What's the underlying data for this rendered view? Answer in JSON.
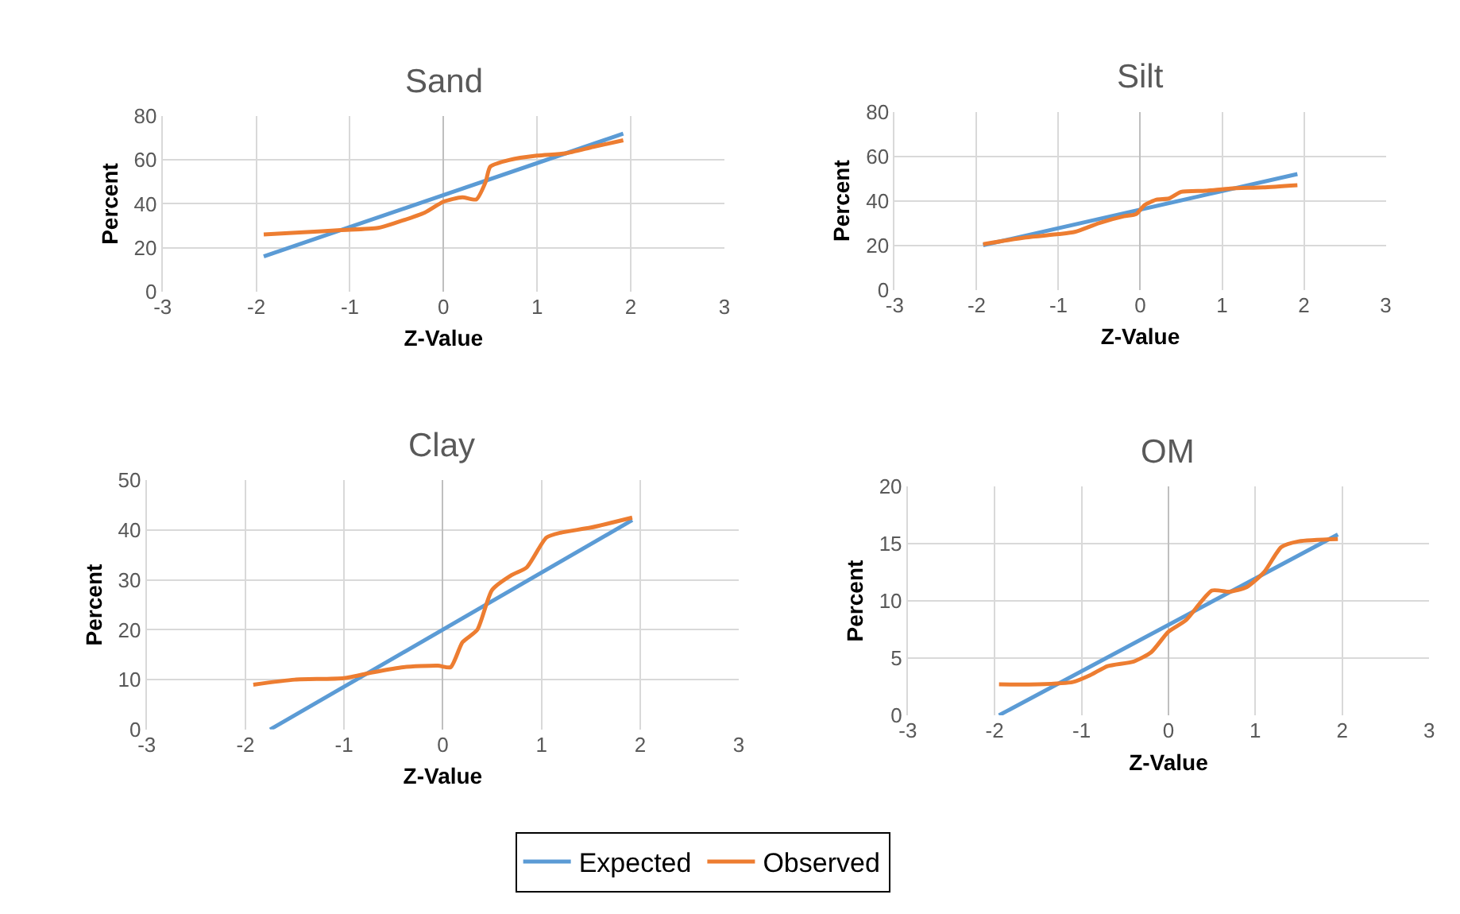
{
  "chart_data": [
    {
      "type": "line",
      "title": "Sand",
      "xlabel": "Z-Value",
      "ylabel": "Percent",
      "xlim": [
        -3,
        3
      ],
      "xticks": [
        -3,
        -2,
        -1,
        0,
        1,
        2,
        3
      ],
      "ylim": [
        0,
        80
      ],
      "yticks": [
        0,
        20,
        40,
        60,
        80
      ],
      "grid": true,
      "legend": "bottom",
      "series": [
        {
          "name": "Expected",
          "color": "#5b9bd5",
          "x": [
            -1.92,
            1.92
          ],
          "values": [
            16,
            72
          ]
        },
        {
          "name": "Observed",
          "color": "#ed7d31",
          "x": [
            -1.92,
            -1.5,
            -1.1,
            -0.7,
            -0.5,
            -0.2,
            0,
            0.2,
            0.35,
            0.45,
            0.5,
            0.7,
            1,
            1.3,
            1.6,
            1.92
          ],
          "values": [
            26,
            27,
            28,
            29,
            31.5,
            36,
            41,
            43,
            42,
            50,
            57,
            60,
            62,
            63,
            66,
            69
          ]
        }
      ]
    },
    {
      "type": "line",
      "title": "Silt",
      "xlabel": "Z-Value",
      "ylabel": "Percent",
      "xlim": [
        -3,
        3
      ],
      "xticks": [
        -3,
        -2,
        -1,
        0,
        1,
        2,
        3
      ],
      "ylim": [
        0,
        80
      ],
      "yticks": [
        0,
        20,
        40,
        60,
        80
      ],
      "grid": true,
      "series": [
        {
          "name": "Expected",
          "color": "#5b9bd5",
          "x": [
            -1.92,
            1.92
          ],
          "values": [
            20,
            52
          ]
        },
        {
          "name": "Observed",
          "color": "#ed7d31",
          "x": [
            -1.92,
            -1.4,
            -1,
            -0.8,
            -0.5,
            -0.2,
            -0.05,
            0.05,
            0.2,
            0.35,
            0.5,
            0.8,
            1.1,
            1.5,
            1.92
          ],
          "values": [
            20.5,
            23.5,
            25,
            26,
            30,
            33,
            34,
            38,
            40.5,
            41,
            44,
            44.5,
            45.5,
            46,
            47
          ]
        }
      ]
    },
    {
      "type": "line",
      "title": "Clay",
      "xlabel": "Z-Value",
      "ylabel": "Percent",
      "xlim": [
        -3,
        3
      ],
      "xticks": [
        -3,
        -2,
        -1,
        0,
        1,
        2,
        3
      ],
      "ylim": [
        0,
        50
      ],
      "yticks": [
        0,
        10,
        20,
        30,
        40,
        50
      ],
      "grid": true,
      "series": [
        {
          "name": "Expected",
          "color": "#5b9bd5",
          "x": [
            -1.75,
            1.92
          ],
          "values": [
            0,
            42
          ]
        },
        {
          "name": "Observed",
          "color": "#ed7d31",
          "x": [
            -1.92,
            -1.5,
            -1,
            -0.7,
            -0.4,
            -0.05,
            0.08,
            0.2,
            0.35,
            0.5,
            0.7,
            0.85,
            1.05,
            1.2,
            1.5,
            1.92
          ],
          "values": [
            9,
            10,
            10.3,
            11.5,
            12.5,
            12.8,
            12.5,
            17.5,
            20,
            28,
            31,
            32.5,
            38.5,
            39.5,
            40.5,
            42.5
          ]
        }
      ]
    },
    {
      "type": "line",
      "title": "OM",
      "xlabel": "Z-Value",
      "ylabel": "Percent",
      "xlim": [
        -3,
        3
      ],
      "xticks": [
        -3,
        -2,
        -1,
        0,
        1,
        2,
        3
      ],
      "ylim": [
        0,
        20
      ],
      "yticks": [
        0,
        5,
        10,
        15,
        20
      ],
      "grid": true,
      "series": [
        {
          "name": "Expected",
          "color": "#5b9bd5",
          "x": [
            -1.95,
            1.95
          ],
          "values": [
            0,
            15.8
          ]
        },
        {
          "name": "Observed",
          "color": "#ed7d31",
          "x": [
            -1.95,
            -1.5,
            -1.1,
            -0.9,
            -0.7,
            -0.4,
            -0.2,
            0,
            0.2,
            0.5,
            0.7,
            0.9,
            1.1,
            1.3,
            1.5,
            1.95
          ],
          "values": [
            2.7,
            2.7,
            2.9,
            3.5,
            4.3,
            4.7,
            5.5,
            7.3,
            8.3,
            10.9,
            10.8,
            11.2,
            12.5,
            14.7,
            15.2,
            15.4
          ]
        }
      ]
    }
  ]
}
